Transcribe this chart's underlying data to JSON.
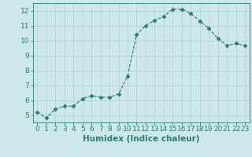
{
  "xlabel": "Humidex (Indice chaleur)",
  "ylabel": "",
  "x": [
    0,
    1,
    2,
    3,
    4,
    5,
    6,
    7,
    8,
    9,
    10,
    11,
    12,
    13,
    14,
    15,
    16,
    17,
    18,
    19,
    20,
    21,
    22,
    23
  ],
  "y": [
    5.2,
    4.8,
    5.4,
    5.6,
    5.6,
    6.1,
    6.3,
    6.2,
    6.2,
    6.4,
    7.6,
    10.4,
    11.0,
    11.35,
    11.6,
    12.1,
    12.1,
    11.8,
    11.3,
    10.8,
    10.15,
    9.65,
    9.8,
    9.65
  ],
  "line_color": "#2e7d6e",
  "marker": "D",
  "marker_size": 2.5,
  "bg_color": "#cce8e8",
  "grid_color": "#b0d4d4",
  "ylim": [
    4.5,
    12.5
  ],
  "xlim": [
    -0.5,
    23.5
  ],
  "yticks": [
    5,
    6,
    7,
    8,
    9,
    10,
    11,
    12
  ],
  "xticks": [
    0,
    1,
    2,
    3,
    4,
    5,
    6,
    7,
    8,
    9,
    10,
    11,
    12,
    13,
    14,
    15,
    16,
    17,
    18,
    19,
    20,
    21,
    22,
    23
  ],
  "tick_fontsize": 6.5,
  "xlabel_fontsize": 7.5,
  "axis_color": "#2e7d6e",
  "spine_color": "#2e7d6e"
}
